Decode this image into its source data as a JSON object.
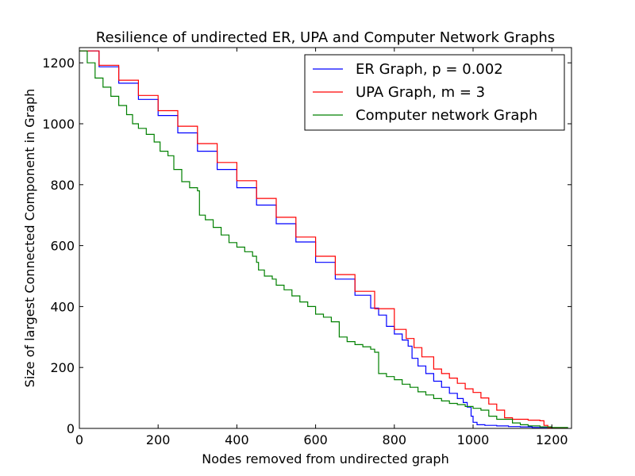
{
  "chart_data": {
    "type": "line",
    "title": "Resilience of undirected ER, UPA and Computer Network Graphs",
    "xlabel": "Nodes removed from undirected graph",
    "ylabel": "Size of largest Connected Component in Graph",
    "xlim": [
      0,
      1250
    ],
    "ylim": [
      0,
      1250
    ],
    "xticks": [
      0,
      200,
      400,
      600,
      800,
      1000,
      1200
    ],
    "yticks": [
      0,
      200,
      400,
      600,
      800,
      1000,
      1200
    ],
    "xtick_labels": [
      "0",
      "200",
      "400",
      "600",
      "800",
      "1000",
      "1200"
    ],
    "ytick_labels": [
      "0",
      "200",
      "400",
      "600",
      "800",
      "1000",
      "1200"
    ],
    "grid": false,
    "legend_position": "top-right",
    "series": [
      {
        "name": "ER Graph, p = 0.002",
        "color": "#0000ff",
        "points": [
          [
            0,
            1239
          ],
          [
            50,
            1187
          ],
          [
            100,
            1133
          ],
          [
            150,
            1080
          ],
          [
            200,
            1027
          ],
          [
            250,
            970
          ],
          [
            300,
            910
          ],
          [
            350,
            850
          ],
          [
            400,
            790
          ],
          [
            450,
            733
          ],
          [
            500,
            672
          ],
          [
            550,
            612
          ],
          [
            600,
            545
          ],
          [
            650,
            490
          ],
          [
            700,
            437
          ],
          [
            740,
            395
          ],
          [
            760,
            372
          ],
          [
            780,
            335
          ],
          [
            800,
            310
          ],
          [
            820,
            290
          ],
          [
            835,
            270
          ],
          [
            845,
            230
          ],
          [
            860,
            205
          ],
          [
            880,
            180
          ],
          [
            900,
            155
          ],
          [
            920,
            135
          ],
          [
            940,
            115
          ],
          [
            960,
            98
          ],
          [
            975,
            85
          ],
          [
            985,
            70
          ],
          [
            995,
            40
          ],
          [
            1000,
            20
          ],
          [
            1010,
            12
          ],
          [
            1030,
            10
          ],
          [
            1060,
            8
          ],
          [
            1090,
            6
          ],
          [
            1120,
            5
          ],
          [
            1150,
            3
          ],
          [
            1200,
            2
          ],
          [
            1240,
            0
          ]
        ]
      },
      {
        "name": "UPA Graph, m = 3",
        "color": "#ff0000",
        "points": [
          [
            0,
            1239
          ],
          [
            50,
            1192
          ],
          [
            100,
            1143
          ],
          [
            150,
            1093
          ],
          [
            200,
            1043
          ],
          [
            250,
            992
          ],
          [
            300,
            935
          ],
          [
            350,
            873
          ],
          [
            400,
            813
          ],
          [
            450,
            755
          ],
          [
            500,
            693
          ],
          [
            550,
            628
          ],
          [
            600,
            565
          ],
          [
            650,
            505
          ],
          [
            700,
            450
          ],
          [
            750,
            393
          ],
          [
            800,
            325
          ],
          [
            830,
            295
          ],
          [
            850,
            265
          ],
          [
            870,
            235
          ],
          [
            900,
            195
          ],
          [
            920,
            180
          ],
          [
            940,
            165
          ],
          [
            960,
            148
          ],
          [
            980,
            130
          ],
          [
            1000,
            118
          ],
          [
            1020,
            100
          ],
          [
            1040,
            80
          ],
          [
            1060,
            60
          ],
          [
            1080,
            35
          ],
          [
            1100,
            30
          ],
          [
            1140,
            27
          ],
          [
            1170,
            25
          ],
          [
            1180,
            10
          ],
          [
            1190,
            2
          ],
          [
            1240,
            0
          ]
        ]
      },
      {
        "name": "Computer network Graph",
        "color": "#008000",
        "points": [
          [
            0,
            1239
          ],
          [
            20,
            1200
          ],
          [
            40,
            1150
          ],
          [
            60,
            1120
          ],
          [
            80,
            1090
          ],
          [
            100,
            1060
          ],
          [
            120,
            1030
          ],
          [
            135,
            1000
          ],
          [
            150,
            985
          ],
          [
            170,
            965
          ],
          [
            190,
            940
          ],
          [
            205,
            910
          ],
          [
            225,
            895
          ],
          [
            240,
            850
          ],
          [
            260,
            810
          ],
          [
            280,
            790
          ],
          [
            300,
            780
          ],
          [
            305,
            700
          ],
          [
            320,
            685
          ],
          [
            340,
            660
          ],
          [
            360,
            635
          ],
          [
            380,
            610
          ],
          [
            400,
            595
          ],
          [
            420,
            580
          ],
          [
            440,
            565
          ],
          [
            450,
            545
          ],
          [
            455,
            520
          ],
          [
            470,
            500
          ],
          [
            490,
            490
          ],
          [
            500,
            470
          ],
          [
            520,
            455
          ],
          [
            540,
            435
          ],
          [
            560,
            415
          ],
          [
            580,
            400
          ],
          [
            600,
            375
          ],
          [
            620,
            365
          ],
          [
            640,
            350
          ],
          [
            660,
            300
          ],
          [
            680,
            285
          ],
          [
            700,
            275
          ],
          [
            720,
            268
          ],
          [
            740,
            260
          ],
          [
            750,
            250
          ],
          [
            760,
            180
          ],
          [
            780,
            170
          ],
          [
            800,
            160
          ],
          [
            820,
            145
          ],
          [
            840,
            135
          ],
          [
            860,
            120
          ],
          [
            880,
            110
          ],
          [
            900,
            98
          ],
          [
            920,
            90
          ],
          [
            940,
            82
          ],
          [
            960,
            78
          ],
          [
            980,
            72
          ],
          [
            1000,
            66
          ],
          [
            1020,
            60
          ],
          [
            1040,
            40
          ],
          [
            1060,
            30
          ],
          [
            1080,
            30
          ],
          [
            1100,
            18
          ],
          [
            1120,
            12
          ],
          [
            1140,
            8
          ],
          [
            1170,
            5
          ],
          [
            1200,
            3
          ],
          [
            1240,
            0
          ]
        ]
      }
    ]
  }
}
